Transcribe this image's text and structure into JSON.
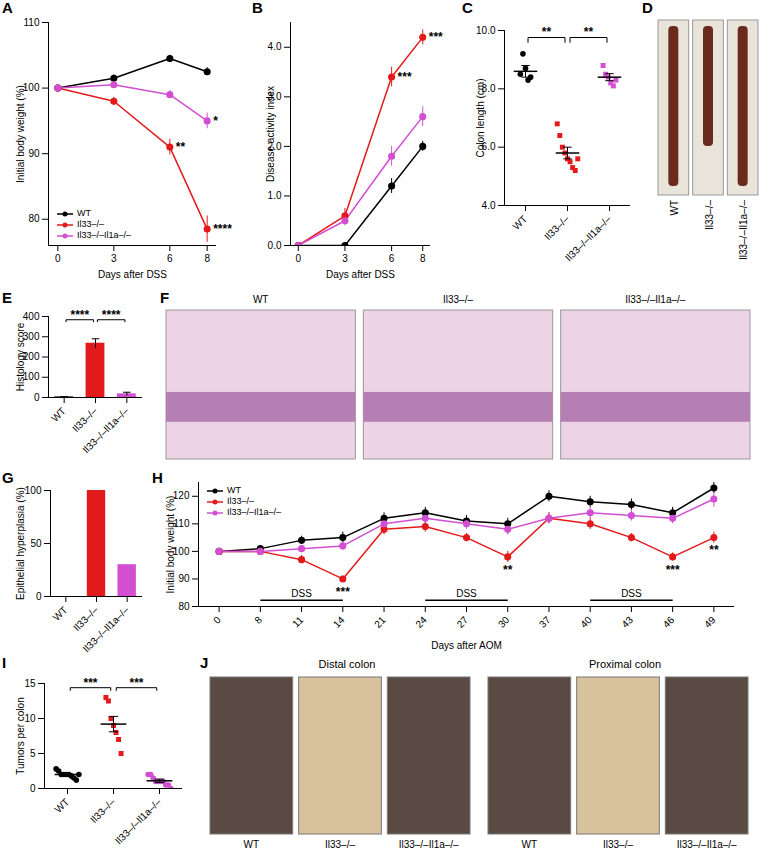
{
  "chart_data": [
    {
      "panel": "A",
      "type": "line",
      "x_label": "Days after DSS",
      "y_label": "Initial body weight (%)",
      "x": [
        0,
        3,
        6,
        8
      ],
      "xlim": [
        -0.5,
        8.5
      ],
      "xticks": [
        0,
        3,
        6,
        8
      ],
      "ylim": [
        76,
        110
      ],
      "yticks": [
        80,
        90,
        100,
        110
      ],
      "legend": "bottom-left",
      "marker": "circle",
      "series": [
        {
          "name": "WT",
          "color": "#000000",
          "values": [
            100,
            101.5,
            104.5,
            102.5
          ],
          "errors": [
            0,
            0.5,
            0.5,
            0.6
          ]
        },
        {
          "name": "Il33–/–",
          "color": "#e31a1c",
          "values": [
            100,
            98,
            91,
            78.5
          ],
          "errors": [
            0,
            0.6,
            1.2,
            2
          ]
        },
        {
          "name": "Il33–/–Il1a–/–",
          "color": "#d24fd2",
          "values": [
            100,
            100.5,
            99,
            95
          ],
          "errors": [
            0,
            0.5,
            0.6,
            1.2
          ]
        }
      ],
      "annotations": [
        {
          "x": 6,
          "y": 91,
          "text": "**"
        },
        {
          "x": 8,
          "y": 78.5,
          "text": "****"
        },
        {
          "x": 8,
          "y": 95,
          "text": "*"
        }
      ]
    },
    {
      "panel": "B",
      "type": "line",
      "x_label": "Days after DSS",
      "y_label": "Disease activity index",
      "x": [
        0,
        3,
        6,
        8
      ],
      "xlim": [
        -0.5,
        8.5
      ],
      "xticks": [
        0,
        3,
        6,
        8
      ],
      "ylim": [
        0,
        4.5
      ],
      "yticks": [
        0,
        1,
        2,
        3,
        4
      ],
      "marker": "circle",
      "series": [
        {
          "name": "WT",
          "color": "#000000",
          "values": [
            0,
            0,
            1.2,
            2.0
          ],
          "errors": [
            0,
            0,
            0.15,
            0.1
          ]
        },
        {
          "name": "Il33–/–",
          "color": "#e31a1c",
          "values": [
            0,
            0.6,
            3.4,
            4.2
          ],
          "errors": [
            0,
            0.15,
            0.2,
            0.15
          ]
        },
        {
          "name": "Il33–/–Il1a–/–",
          "color": "#d24fd2",
          "values": [
            0,
            0.5,
            1.8,
            2.6
          ],
          "errors": [
            0,
            0.1,
            0.2,
            0.2
          ]
        }
      ],
      "annotations": [
        {
          "x": 6,
          "y": 3.4,
          "text": "***"
        },
        {
          "x": 8,
          "y": 4.2,
          "text": "***"
        }
      ]
    },
    {
      "panel": "C",
      "type": "scatter",
      "y_label": "Colon length (cm)",
      "categories": [
        "WT",
        "Il33–/–",
        "Il33–/–Il1a–/–"
      ],
      "ylim": [
        4,
        10
      ],
      "yticks": [
        4,
        6,
        8,
        10
      ],
      "points": [
        [
          8.5,
          9.2,
          8.7,
          8.3,
          8.4
        ],
        [
          6.8,
          6.4,
          6.0,
          5.8,
          5.6,
          5.5,
          5.3,
          5.2,
          5.6
        ],
        [
          8.8,
          8.5,
          8.4,
          8.2,
          8.1,
          8.3
        ]
      ],
      "means": [
        8.6,
        5.8,
        8.4
      ],
      "errors": [
        0.2,
        0.2,
        0.12
      ],
      "colors": [
        "#000000",
        "#e31a1c",
        "#d24fd2"
      ],
      "markers": [
        "circle",
        "square",
        "square"
      ],
      "comparisons": [
        {
          "from": 0,
          "to": 1,
          "text": "**"
        },
        {
          "from": 1,
          "to": 2,
          "text": "**"
        }
      ]
    },
    {
      "panel": "E",
      "type": "bar",
      "y_label": "Histology score",
      "categories": [
        "WT",
        "Il33–/–",
        "Il33–/–Il1a–/–"
      ],
      "values": [
        3,
        268,
        18
      ],
      "errors": [
        1,
        22,
        8
      ],
      "colors": [
        "#000000",
        "#e31a1c",
        "#d24fd2"
      ],
      "ylim": [
        0,
        400
      ],
      "yticks": [
        0,
        100,
        200,
        300,
        400
      ],
      "comparisons": [
        {
          "from": 0,
          "to": 1,
          "text": "****"
        },
        {
          "from": 1,
          "to": 2,
          "text": "****"
        }
      ]
    },
    {
      "panel": "G",
      "type": "bar",
      "y_label": "Epithelial hyperplasia (%)",
      "categories": [
        "WT",
        "Il33–/–",
        "Il33–/–Il1a–/–"
      ],
      "values": [
        0,
        100,
        30
      ],
      "colors": [
        "#000000",
        "#e31a1c",
        "#d24fd2"
      ],
      "ylim": [
        0,
        100
      ],
      "yticks": [
        0,
        50,
        100
      ]
    },
    {
      "panel": "H",
      "type": "line",
      "x_label": "Days after AOM",
      "y_label": "Initial body weight (%)",
      "categories": [
        "0",
        "8",
        "11",
        "14",
        "21",
        "24",
        "27",
        "30",
        "37",
        "40",
        "43",
        "46",
        "49"
      ],
      "ylim": [
        80,
        125
      ],
      "yticks": [
        80,
        90,
        100,
        110,
        120
      ],
      "legend": "top-left",
      "marker": "circle",
      "series": [
        {
          "name": "WT",
          "color": "#000000",
          "values": [
            100,
            101,
            104,
            105,
            112,
            114,
            111,
            110,
            120,
            118,
            117,
            114,
            123
          ],
          "errors": [
            0,
            1,
            1.5,
            2,
            2,
            2,
            2,
            2,
            2,
            2,
            2,
            2,
            2
          ]
        },
        {
          "name": "Il33–/–",
          "color": "#e31a1c",
          "values": [
            100,
            100,
            97,
            90,
            108,
            109,
            105,
            98,
            112,
            110,
            105,
            98,
            105
          ],
          "errors": [
            0,
            1,
            1.5,
            1,
            2,
            2,
            1.5,
            2,
            2,
            2,
            1.5,
            1.5,
            2
          ]
        },
        {
          "name": "Il33–/–Il1a–/–",
          "color": "#d24fd2",
          "values": [
            100,
            100,
            101,
            102,
            110,
            112,
            110,
            108,
            112,
            114,
            113,
            112,
            119
          ],
          "errors": [
            0,
            1,
            1,
            1.5,
            2,
            2,
            2,
            2,
            2,
            2,
            2,
            2,
            3
          ]
        }
      ],
      "periods": [
        {
          "from": "8",
          "to": "14",
          "text": "DSS"
        },
        {
          "from": "24",
          "to": "30",
          "text": "DSS"
        },
        {
          "from": "40",
          "to": "46",
          "text": "DSS"
        }
      ],
      "annotations": [
        {
          "x": "14",
          "y": 90,
          "text": "***"
        },
        {
          "x": "30",
          "y": 98,
          "text": "**"
        },
        {
          "x": "46",
          "y": 98,
          "text": "***"
        },
        {
          "x": "49",
          "y": 105,
          "text": "**"
        }
      ]
    },
    {
      "panel": "I",
      "type": "scatter",
      "y_label": "Tumors per colon",
      "categories": [
        "WT",
        "Il33–/–",
        "Il33–/–Il1a–/–"
      ],
      "ylim": [
        0,
        15
      ],
      "yticks": [
        0,
        5,
        10,
        15
      ],
      "points": [
        [
          2.8,
          2.5,
          2,
          2,
          2,
          2,
          1.8,
          1.5,
          1.2,
          2
        ],
        [
          13,
          12.5,
          10,
          9,
          8,
          7,
          5
        ],
        [
          2,
          2,
          1.5,
          1,
          1,
          1,
          1,
          0.5,
          0.5,
          0
        ]
      ],
      "means": [
        2.0,
        9.2,
        1.1
      ],
      "errors": [
        0.15,
        1.1,
        0.25
      ],
      "colors": [
        "#000000",
        "#e31a1c",
        "#d24fd2"
      ],
      "markers": [
        "circle",
        "square",
        "circle"
      ],
      "comparisons": [
        {
          "from": 0,
          "to": 1,
          "text": "***"
        },
        {
          "from": 1,
          "to": 2,
          "text": "***"
        }
      ]
    }
  ],
  "images": [
    {
      "panel": "D",
      "labels": [
        "WT",
        "Il33–/–",
        "Il33–/–Il1a–/–"
      ]
    },
    {
      "panel": "F",
      "labels": [
        "WT",
        "Il33–/–",
        "Il33–/–Il1a–/–"
      ]
    },
    {
      "panel": "J",
      "groups": [
        {
          "title": "Distal colon",
          "labels": [
            "WT",
            "Il33–/–",
            "Il33–/–Il1a–/–"
          ]
        },
        {
          "title": "Proximal colon",
          "labels": [
            "WT",
            "Il33–/–",
            "Il33–/–Il1a–/–"
          ]
        }
      ]
    }
  ]
}
